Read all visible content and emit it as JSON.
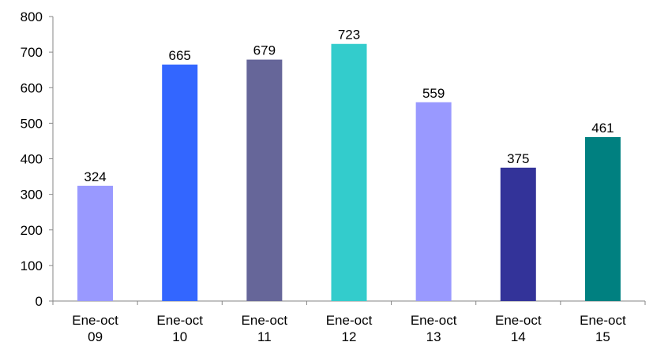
{
  "chart_data": {
    "type": "bar",
    "title": "",
    "xlabel": "",
    "ylabel": "",
    "ylim": [
      0,
      800
    ],
    "yticks": [
      0,
      100,
      200,
      300,
      400,
      500,
      600,
      700,
      800
    ],
    "grid": false,
    "legend": "none",
    "categories": [
      [
        "Ene-oct",
        "09"
      ],
      [
        "Ene-oct",
        "10"
      ],
      [
        "Ene-oct",
        "11"
      ],
      [
        "Ene-oct",
        "12"
      ],
      [
        "Ene-oct",
        "13"
      ],
      [
        "Ene-oct",
        "14"
      ],
      [
        "Ene-oct",
        "15"
      ]
    ],
    "values": [
      324,
      665,
      679,
      723,
      559,
      375,
      461
    ],
    "data_labels": [
      "324",
      "665",
      "679",
      "723",
      "559",
      "375",
      "461"
    ],
    "bar_colors": [
      "#9999ff",
      "#3366ff",
      "#666699",
      "#33cccc",
      "#9999ff",
      "#333399",
      "#008080"
    ],
    "axis_color": "#868686"
  }
}
